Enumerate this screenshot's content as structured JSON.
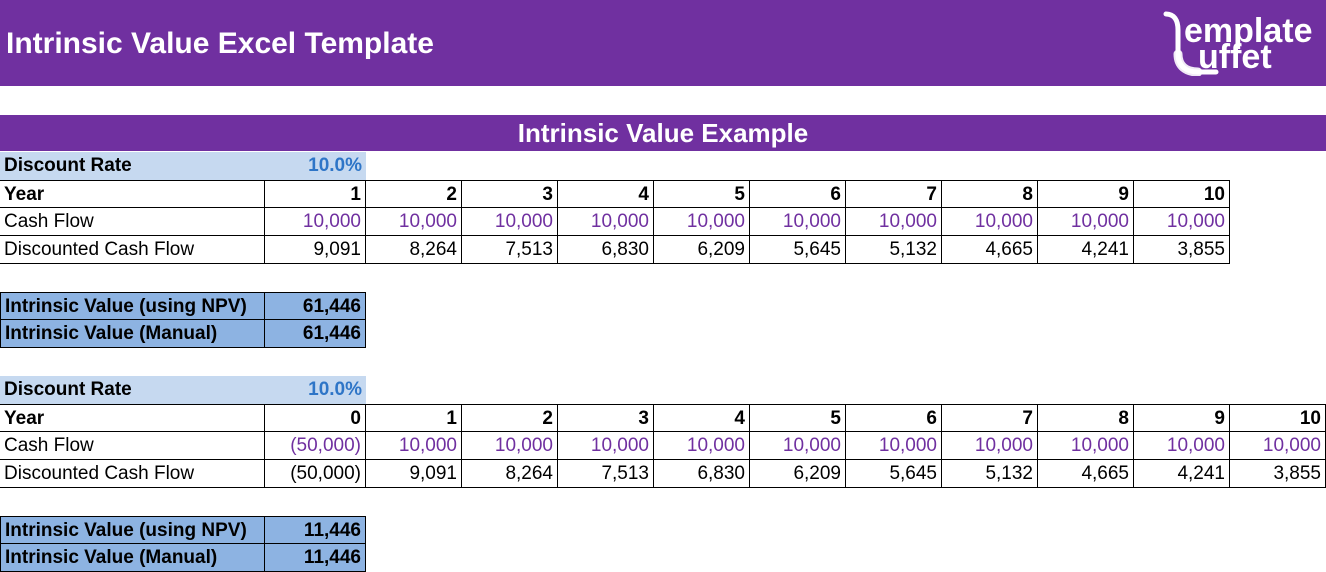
{
  "header": {
    "title": "Intrinsic Value Excel Template",
    "logo_line1": "emplate",
    "logo_line2": "uffet"
  },
  "section_title": "Intrinsic Value Example",
  "colors": {
    "banner": "#7030a0",
    "cash_flow_text": "#7030a0",
    "rate_text": "#2e75c7",
    "label_bg": "#c6d9f0",
    "result_bg": "#8db3e2"
  },
  "example1": {
    "discount_rate_label": "Discount Rate",
    "discount_rate_value": "10.0%",
    "row_labels": [
      "Year",
      "Cash Flow",
      "Discounted Cash Flow"
    ],
    "years": [
      "1",
      "2",
      "3",
      "4",
      "5",
      "6",
      "7",
      "8",
      "9",
      "10"
    ],
    "cash_flows": [
      "10,000",
      "10,000",
      "10,000",
      "10,000",
      "10,000",
      "10,000",
      "10,000",
      "10,000",
      "10,000",
      "10,000"
    ],
    "discounted": [
      "9,091",
      "8,264",
      "7,513",
      "6,830",
      "6,209",
      "5,645",
      "5,132",
      "4,665",
      "4,241",
      "3,855"
    ],
    "npv_label": "Intrinsic Value (using NPV)",
    "npv_value": "61,446",
    "manual_label": "Intrinsic Value (Manual)",
    "manual_value": "61,446"
  },
  "example2": {
    "discount_rate_label": "Discount Rate",
    "discount_rate_value": "10.0%",
    "row_labels": [
      "Year",
      "Cash Flow",
      "Discounted Cash Flow"
    ],
    "years": [
      "0",
      "1",
      "2",
      "3",
      "4",
      "5",
      "6",
      "7",
      "8",
      "9",
      "10"
    ],
    "cash_flows": [
      "(50,000)",
      "10,000",
      "10,000",
      "10,000",
      "10,000",
      "10,000",
      "10,000",
      "10,000",
      "10,000",
      "10,000",
      "10,000"
    ],
    "discounted": [
      "(50,000)",
      "9,091",
      "8,264",
      "7,513",
      "6,830",
      "6,209",
      "5,645",
      "5,132",
      "4,665",
      "4,241",
      "3,855"
    ],
    "npv_label": "Intrinsic Value (using NPV)",
    "npv_value": "11,446",
    "manual_label": "Intrinsic Value (Manual)",
    "manual_value": "11,446"
  }
}
